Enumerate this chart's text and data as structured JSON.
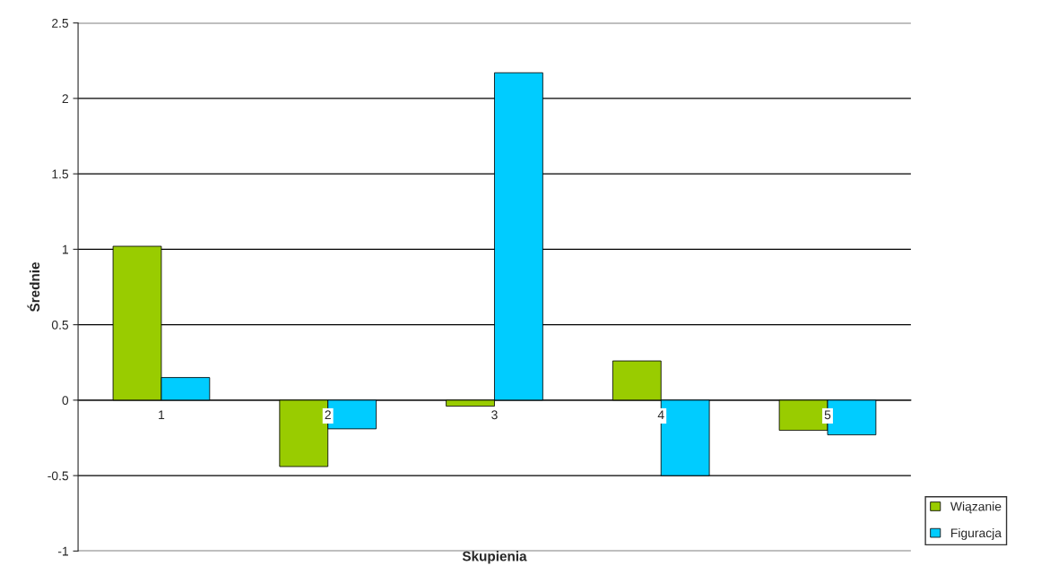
{
  "chart_data": {
    "type": "bar",
    "categories": [
      "1",
      "2",
      "3",
      "4",
      "5"
    ],
    "series": [
      {
        "name": "Wiązanie",
        "color": "#99cc00",
        "values": [
          1.02,
          -0.44,
          -0.04,
          0.26,
          -0.2
        ]
      },
      {
        "name": "Figuracja",
        "color": "#00ccff",
        "values": [
          0.15,
          -0.19,
          2.17,
          -0.5,
          -0.23
        ]
      }
    ],
    "xlabel": "Skupienia",
    "ylabel": "Średnie",
    "ylim": [
      -1,
      2.5
    ],
    "yticks": [
      -1,
      -0.5,
      0,
      0.5,
      1,
      1.5,
      2,
      2.5
    ],
    "grid": "y",
    "legend": "bottom right"
  }
}
